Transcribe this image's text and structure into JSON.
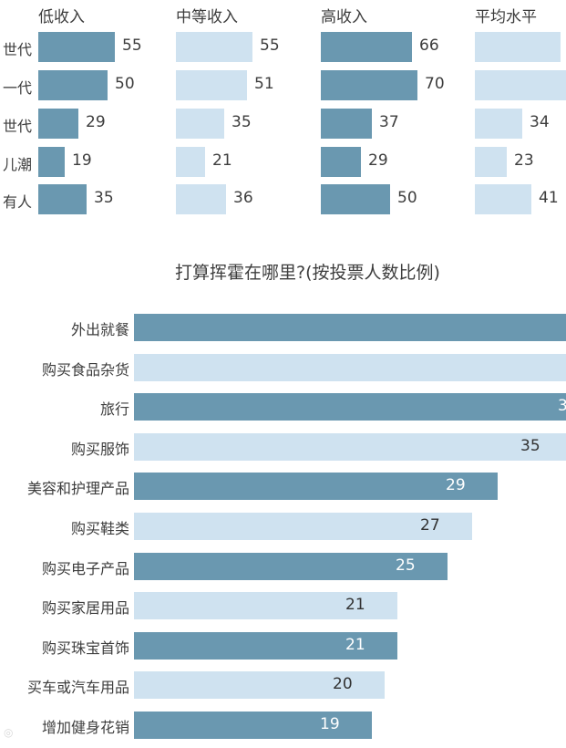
{
  "colors": {
    "dark": "#6a98b0",
    "light": "#cfe2f0",
    "text": "#3d3d3d"
  },
  "top_chart": {
    "row_labels": [
      "世代",
      "一代",
      "世代",
      "儿潮",
      "有人"
    ],
    "columns": [
      {
        "title": "低收入",
        "style": "dark",
        "values": [
          "55",
          "50",
          "29",
          "19",
          "35"
        ]
      },
      {
        "title": "中等收入",
        "style": "light",
        "values": [
          "55",
          "51",
          "35",
          "21",
          "36"
        ]
      },
      {
        "title": "高收入",
        "style": "dark",
        "values": [
          "66",
          "70",
          "37",
          "29",
          "50"
        ]
      },
      {
        "title": "平均水平",
        "style": "light",
        "values": [
          "",
          "",
          "34",
          "23",
          "41"
        ]
      }
    ]
  },
  "bottom_chart": {
    "title": "打算挥霍在哪里?(按投票人数比例)",
    "items": [
      {
        "label": "外出就餐",
        "value": "",
        "style": "dark"
      },
      {
        "label": "购买食品杂货",
        "value": "",
        "style": "light"
      },
      {
        "label": "旅行",
        "value": "3",
        "style": "dark"
      },
      {
        "label": "购买服饰",
        "value": "35",
        "style": "light"
      },
      {
        "label": "美容和护理产品",
        "value": "29",
        "style": "dark"
      },
      {
        "label": "购买鞋类",
        "value": "27",
        "style": "light"
      },
      {
        "label": "购买电子产品",
        "value": "25",
        "style": "dark"
      },
      {
        "label": "购买家居用品",
        "value": "21",
        "style": "light"
      },
      {
        "label": "购买珠宝首饰",
        "value": "21",
        "style": "dark"
      },
      {
        "label": "买车或汽车用品",
        "value": "20",
        "style": "light"
      },
      {
        "label": "增加健身花销",
        "value": "19",
        "style": "dark"
      }
    ]
  },
  "chart_data": [
    {
      "type": "bar",
      "orientation": "horizontal",
      "title": "",
      "categories": [
        "世代",
        "一代",
        "世代",
        "儿潮",
        "有人"
      ],
      "series": [
        {
          "name": "低收入",
          "values": [
            55,
            50,
            29,
            19,
            35
          ]
        },
        {
          "name": "中等收入",
          "values": [
            55,
            51,
            35,
            21,
            36
          ]
        },
        {
          "name": "高收入",
          "values": [
            66,
            70,
            37,
            29,
            50
          ]
        },
        {
          "name": "平均水平",
          "values": [
            null,
            null,
            34,
            23,
            41
          ]
        }
      ],
      "layout": "small multiples, one panel per series, data labels right of bars, no axes, no grid"
    },
    {
      "type": "bar",
      "orientation": "horizontal",
      "title": "打算挥霍在哪里?(按投票人数比例)",
      "categories": [
        "外出就餐",
        "购买食品杂货",
        "旅行",
        "购买服饰",
        "美容和护理产品",
        "购买鞋类",
        "购买电子产品",
        "购买家居用品",
        "购买珠宝首饰",
        "买车或汽车用品",
        "增加健身花销"
      ],
      "values": [
        null,
        null,
        null,
        35,
        29,
        27,
        25,
        21,
        21,
        20,
        19
      ],
      "xlabel": "",
      "ylabel": "",
      "notes": "first three bars extend past the right edge; labels clipped (third shows partial '3')",
      "grid": false
    }
  ]
}
